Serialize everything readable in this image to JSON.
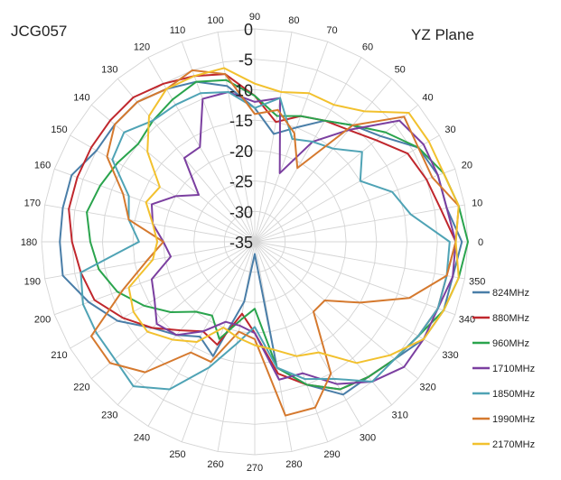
{
  "chart_data": {
    "type": "radar",
    "title_left": "JCG057",
    "title_right": "YZ  Plane",
    "rlim": [
      -35,
      0
    ],
    "radial_ticks": [
      "0",
      "-5",
      "-10",
      "-15",
      "-20",
      "-25",
      "-30",
      "-35"
    ],
    "radial_tick_values": [
      0,
      -5,
      -10,
      -15,
      -20,
      -25,
      -30,
      -35
    ],
    "angle_labels": [
      "0",
      "10",
      "20",
      "30",
      "40",
      "50",
      "60",
      "70",
      "80",
      "90",
      "100",
      "110",
      "120",
      "130",
      "140",
      "150",
      "160",
      "170",
      "180",
      "190",
      "200",
      "210",
      "220",
      "230",
      "240",
      "250",
      "260",
      "270",
      "280",
      "290",
      "300",
      "310",
      "320",
      "330",
      "340",
      "350"
    ],
    "angles": [
      0,
      10,
      20,
      30,
      40,
      50,
      60,
      70,
      80,
      90,
      100,
      110,
      120,
      130,
      140,
      150,
      160,
      170,
      180,
      190,
      200,
      210,
      220,
      230,
      240,
      250,
      260,
      270,
      280,
      290,
      300,
      310,
      320,
      330,
      340,
      350
    ],
    "grid": true,
    "legend_position": "right",
    "series": [
      {
        "name": "824MHz",
        "color": "#4a7ea8",
        "values": [
          -1,
          -3,
          -3,
          -4,
          -8,
          -10,
          -12,
          -15,
          -17,
          -13,
          -9,
          -7,
          -6,
          -5,
          -5,
          -5,
          -3,
          -3,
          -3,
          -3,
          -6,
          -9,
          -13,
          -15,
          -17,
          -15,
          -25,
          -33,
          -14,
          -10,
          -6,
          -6,
          -5,
          -3,
          -2,
          -2
        ]
      },
      {
        "name": "880MHz",
        "color": "#c0272d",
        "values": [
          -2,
          -4,
          -5,
          -6,
          -9,
          -11,
          -12,
          -13,
          -15,
          -11,
          -7,
          -6,
          -5,
          -4,
          -4,
          -4,
          -4,
          -4,
          -5,
          -6,
          -7,
          -10,
          -13,
          -16,
          -18,
          -17,
          -23,
          -20,
          -13,
          -10,
          -7,
          -6,
          -5,
          -4,
          -3,
          -3
        ]
      },
      {
        "name": "960MHz",
        "color": "#2aa44d",
        "values": [
          0,
          -1,
          -2,
          -4,
          -7,
          -10,
          -12,
          -13,
          -14,
          -11,
          -8,
          -7,
          -8,
          -9,
          -10,
          -9,
          -8,
          -7,
          -8,
          -9,
          -11,
          -14,
          -17,
          -20,
          -21,
          -18,
          -22,
          -24,
          -14,
          -10,
          -7,
          -6,
          -5,
          -4,
          -2,
          -1
        ]
      },
      {
        "name": "1710MHz",
        "color": "#7b3fa0",
        "values": [
          -2,
          -3,
          -3,
          -3,
          -4,
          -11,
          -16,
          -23,
          -11,
          -12,
          -10,
          -10,
          -17,
          -17,
          -23,
          -20,
          -17,
          -18,
          -20,
          -21,
          -17,
          -16,
          -14,
          -15,
          -18,
          -21,
          -21,
          -20,
          -12,
          -12,
          -8,
          -5,
          -3,
          -3,
          -3,
          -2
        ]
      },
      {
        "name": "1850MHz",
        "color": "#4fa3b5",
        "values": [
          -3,
          -9,
          -11,
          -15,
          -12,
          -15,
          -16,
          -17,
          -11,
          -13,
          -10,
          -9,
          -9,
          -9,
          -7,
          -8,
          -13,
          -14,
          -16,
          -6,
          -5,
          -5,
          -5,
          -4,
          -7,
          -13,
          -18,
          -21,
          -14,
          -11,
          -9,
          -5,
          -5,
          -4,
          -3,
          -3
        ]
      },
      {
        "name": "1990MHz",
        "color": "#d5792e",
        "values": [
          -2,
          -1,
          -4,
          -4,
          -3,
          -10,
          -21,
          -16,
          -13,
          -14,
          -7,
          -5,
          -6,
          -5,
          -5,
          -7,
          -12,
          -14,
          -20,
          -17,
          -12,
          -4,
          -4,
          -7,
          -14,
          -14,
          -20,
          -19,
          -6,
          -6,
          -10,
          -20,
          -20,
          -15,
          -8,
          -3
        ]
      },
      {
        "name": "2170MHz",
        "color": "#f2c12e",
        "values": [
          -2,
          -1,
          -2,
          -2,
          -2,
          -7,
          -9,
          -9,
          -10,
          -9,
          -6,
          -6,
          -6,
          -8,
          -12,
          -17,
          -16,
          -18,
          -19,
          -18,
          -13,
          -12,
          -12,
          -14,
          -16,
          -20,
          -19,
          -18,
          -17,
          -15,
          -14,
          -9,
          -6,
          -3,
          -2,
          -1
        ]
      }
    ]
  }
}
